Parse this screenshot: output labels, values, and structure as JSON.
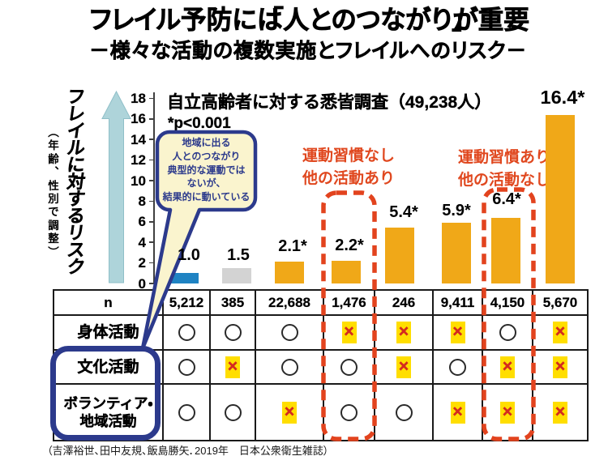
{
  "title": "フレイル予防には「人とのつながり」が重要",
  "subtitle": "－様々な活動の複数実施とフレイルへのリスク－",
  "y_axis": {
    "title": "フレイルに対するリスク",
    "note": "（年齢、性別で調整）"
  },
  "survey_note": {
    "line1": "自立高齢者に対する悉皆調査（49,238人）",
    "line2": "*p<0.001"
  },
  "speech_bubble": {
    "lines": [
      "地域に出る",
      "人とのつながり",
      "典型的な運動では",
      "ないが、",
      "結果的に動いている"
    ]
  },
  "annotations": [
    {
      "lines": [
        "運動習慣なし",
        "他の活動あり"
      ]
    },
    {
      "lines": [
        "運動習慣あり",
        "他の活動なし"
      ]
    }
  ],
  "chart_data": {
    "type": "bar",
    "title": "自立高齢者に対する悉皆調査（49,238人）",
    "note": "*p<0.001",
    "ylabel": "フレイルに対するリスク（年齢、性別で調整）",
    "ylim": [
      0,
      18
    ],
    "ytick_step": 2,
    "yticks": [
      0,
      2,
      4,
      6,
      8,
      10,
      12,
      14,
      16,
      18
    ],
    "categories": [
      "5,212",
      "385",
      "22,688",
      "1,476",
      "246",
      "9,411",
      "4,150",
      "5,670"
    ],
    "values": [
      1.0,
      1.5,
      2.1,
      2.2,
      5.4,
      5.9,
      6.4,
      16.4
    ],
    "value_labels": [
      "1.0",
      "1.5",
      "2.1*",
      "2.2*",
      "5.4*",
      "5.9*",
      "6.4*",
      "16.4*"
    ],
    "bar_colors": [
      "#1f83c3",
      "#d3d3d3",
      "#f0a818",
      "#f0a818",
      "#f0a818",
      "#f0a818",
      "#f0a818",
      "#f0a818"
    ],
    "highlighted_groups": [
      {
        "label": "運動習慣なし 他の活動あり",
        "bar_index": 3
      },
      {
        "label": "運動習慣あり 他の活動なし",
        "bar_index": 6
      }
    ]
  },
  "table": {
    "header_label": "n",
    "header_values": [
      "5,212",
      "385",
      "22,688",
      "1,476",
      "246",
      "9,411",
      "4,150",
      "5,670"
    ],
    "rows": [
      {
        "label_lines": [
          "身体活動"
        ],
        "cells": [
          "○",
          "○",
          "○",
          "×",
          "×",
          "×",
          "○",
          "×"
        ]
      },
      {
        "label_lines": [
          "文化活動"
        ],
        "cells": [
          "○",
          "×",
          "○",
          "○",
          "×",
          "○",
          "×",
          "×"
        ]
      },
      {
        "label_lines": [
          "ボランティア・",
          "地域活動"
        ],
        "cells": [
          "○",
          "○",
          "×",
          "○",
          "○",
          "×",
          "×",
          "×"
        ]
      }
    ],
    "marks": {
      "yes": "○",
      "no": "×"
    }
  },
  "citation": "（吉澤裕世、田中友規、飯島勝矢．2019年　日本公衆衛生雑誌）",
  "colors": {
    "navy": "#2c3a8c",
    "bubble_fill": "#faf4ce",
    "red_dash": "#e2431e",
    "annotation_red": "#e0481f",
    "arrow_fill": "#aed4da",
    "arrow_edge": "#8fbfc8",
    "cross_red": "#d42a20",
    "cross_bg": "#ffde00"
  }
}
